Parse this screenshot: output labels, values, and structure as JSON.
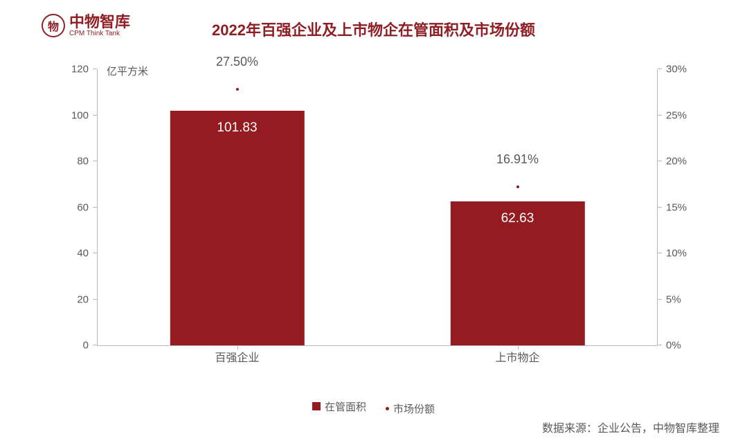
{
  "logo": {
    "cn": "中物智库",
    "en": "CPM Think Tank",
    "icon_glyph": "物",
    "color": "#8e1f24"
  },
  "title": {
    "text": "2022年百强企业及上市物企在管面积及市场份额",
    "color": "#8e1f24",
    "fontsize": 22
  },
  "chart": {
    "type": "bar+scatter-dual-axis",
    "background": "#ffffff",
    "axis_color": "#b8b8b8",
    "text_color": "#595959",
    "left_axis": {
      "unit": "亿平方米",
      "min": 0,
      "max": 120,
      "step": 20,
      "ticks": [
        "0",
        "20",
        "40",
        "60",
        "80",
        "100",
        "120"
      ]
    },
    "right_axis": {
      "min": 0,
      "max": 30,
      "step": 5,
      "ticks": [
        "0%",
        "5%",
        "10%",
        "15%",
        "20%",
        "25%",
        "30%"
      ]
    },
    "categories": [
      "百强企业",
      "上市物企"
    ],
    "category_positions_pct": [
      25,
      75
    ],
    "bars": {
      "series_name": "在管面积",
      "color": "#941c21",
      "width_pct": 24,
      "label_color": "#ffffff",
      "values": [
        101.83,
        62.63
      ],
      "labels": [
        "101.83",
        "62.63"
      ]
    },
    "dots": {
      "series_name": "市场份额",
      "color": "#941c21",
      "values_pct": [
        27.5,
        16.91
      ],
      "labels": [
        "27.50%",
        "16.91%"
      ]
    }
  },
  "legend": {
    "items": [
      {
        "type": "bar",
        "label": "在管面积",
        "color": "#941c21"
      },
      {
        "type": "dot",
        "label": "市场份额",
        "color": "#941c21"
      }
    ]
  },
  "source": "数据来源：企业公告，中物智库整理"
}
